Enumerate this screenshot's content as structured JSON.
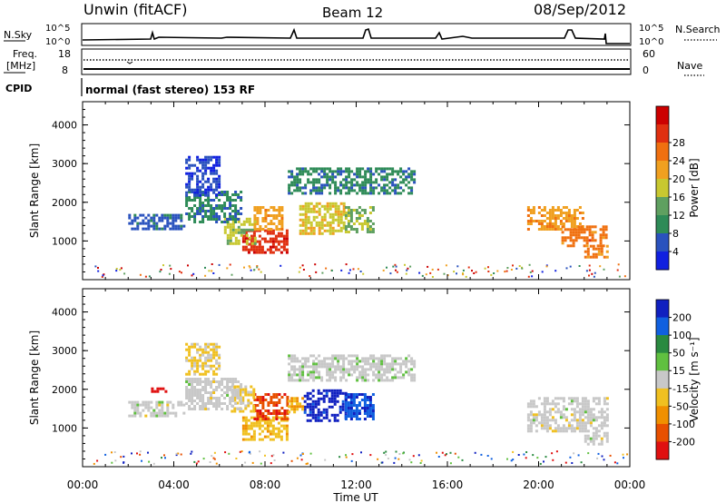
{
  "header": {
    "station": "Unwin (fitACF)",
    "beam": "Beam 12",
    "date": "08/Sep/2012"
  },
  "top_panels": {
    "nsky_label": "N.Sky",
    "nsky_ticks": [
      "10^5",
      "10^0"
    ],
    "nsearch_label": "N.Search",
    "nsearch_ticks": [
      "10^5",
      "10^0"
    ],
    "freq_label": "Freq.",
    "freq_unit": "[MHz]",
    "freq_ticks": [
      "18",
      "8"
    ],
    "nave_label": "Nave",
    "nave_ticks": [
      "60",
      "0"
    ],
    "cpid_label": "CPID",
    "cpid_text": "normal (fast stereo) 153 RF"
  },
  "colors": {
    "power": [
      "#1020e0",
      "#2a52be",
      "#2e8b57",
      "#5fa060",
      "#c8c830",
      "#f0a020",
      "#f07010",
      "#e03010",
      "#cc0000"
    ],
    "velocity": [
      "#1020c0",
      "#1060e0",
      "#2a8a40",
      "#60c040",
      "#c8c8c8",
      "#f0c020",
      "#f09000",
      "#e85000",
      "#e01010"
    ]
  },
  "chart_data": [
    {
      "type": "heatmap",
      "title": "",
      "xlabel": "Time UT",
      "ylabel": "Slant Range [km]",
      "xlim": [
        "00:00",
        "24:00"
      ],
      "x_ticks": [
        "00:00",
        "04:00",
        "08:00",
        "12:00",
        "16:00",
        "20:00",
        "00:00"
      ],
      "ylim": [
        0,
        4600
      ],
      "y_ticks": [
        "1000",
        "2000",
        "3000",
        "4000"
      ],
      "colorbar": {
        "label": "Power [dB]",
        "ticks": [
          "4",
          "8",
          "12",
          "16",
          "20",
          "24",
          "28"
        ],
        "range": [
          0,
          32
        ]
      },
      "regions": [
        {
          "t": [
            7.0,
            9.0
          ],
          "r": [
            700,
            1300
          ],
          "value": 27
        },
        {
          "t": [
            7.5,
            8.8
          ],
          "r": [
            1300,
            1900
          ],
          "value": 20
        },
        {
          "t": [
            6.2,
            7.6
          ],
          "r": [
            900,
            1600
          ],
          "value": 15
        },
        {
          "t": [
            9.5,
            11.5
          ],
          "r": [
            1200,
            2000
          ],
          "value": 17
        },
        {
          "t": [
            11.5,
            12.8
          ],
          "r": [
            1200,
            1900
          ],
          "value": 14
        },
        {
          "t": [
            4.5,
            7.0
          ],
          "r": [
            1500,
            2300
          ],
          "value": 8
        },
        {
          "t": [
            2.0,
            4.5
          ],
          "r": [
            1300,
            1700
          ],
          "value": 6
        },
        {
          "t": [
            4.5,
            6.0
          ],
          "r": [
            2200,
            3200
          ],
          "value": 4
        },
        {
          "t": [
            9.0,
            14.5
          ],
          "r": [
            2200,
            2900
          ],
          "value": 8
        },
        {
          "t": [
            19.5,
            22.0
          ],
          "r": [
            1300,
            1900
          ],
          "value": 20
        },
        {
          "t": [
            21.0,
            23.0
          ],
          "r": [
            900,
            1400
          ],
          "value": 23
        },
        {
          "t": [
            22.0,
            23.0
          ],
          "r": [
            600,
            900
          ],
          "value": 22
        }
      ]
    },
    {
      "type": "heatmap",
      "title": "",
      "xlabel": "Time UT",
      "ylabel": "Slant Range [km]",
      "xlim": [
        "00:00",
        "24:00"
      ],
      "x_ticks": [
        "00:00",
        "04:00",
        "08:00",
        "12:00",
        "16:00",
        "20:00",
        "00:00"
      ],
      "ylim": [
        0,
        4600
      ],
      "y_ticks": [
        "1000",
        "2000",
        "3000",
        "4000"
      ],
      "colorbar": {
        "label": "Velocity [m s⁻¹]",
        "ticks": [
          "200",
          "100",
          "50",
          "15",
          "-15",
          "-50",
          "-100",
          "-200"
        ],
        "range": [
          -250,
          250
        ]
      },
      "regions": [
        {
          "t": [
            7.0,
            9.0
          ],
          "r": [
            700,
            1300
          ],
          "value": -60
        },
        {
          "t": [
            7.5,
            9.0
          ],
          "r": [
            1200,
            1900
          ],
          "value": -180
        },
        {
          "t": [
            6.5,
            7.5
          ],
          "r": [
            1400,
            2100
          ],
          "value": -40
        },
        {
          "t": [
            9.7,
            11.5
          ],
          "r": [
            1200,
            2000
          ],
          "value": 220
        },
        {
          "t": [
            11.5,
            12.8
          ],
          "r": [
            1200,
            1900
          ],
          "value": 180
        },
        {
          "t": [
            9.0,
            9.7
          ],
          "r": [
            1400,
            1800
          ],
          "value": -90
        },
        {
          "t": [
            4.5,
            7.0
          ],
          "r": [
            1500,
            2300
          ],
          "value": 0
        },
        {
          "t": [
            2.0,
            4.5
          ],
          "r": [
            1300,
            1700
          ],
          "value": 0
        },
        {
          "t": [
            4.5,
            6.0
          ],
          "r": [
            2400,
            3200
          ],
          "value": -30
        },
        {
          "t": [
            9.0,
            14.5
          ],
          "r": [
            2200,
            2900
          ],
          "value": 5
        },
        {
          "t": [
            19.5,
            23.0
          ],
          "r": [
            900,
            1800
          ],
          "value": 0
        },
        {
          "t": [
            22.0,
            23.0
          ],
          "r": [
            600,
            900
          ],
          "value": 0
        },
        {
          "t": [
            3.0,
            3.6
          ],
          "r": [
            1950,
            2050
          ],
          "value": -220
        }
      ]
    }
  ]
}
